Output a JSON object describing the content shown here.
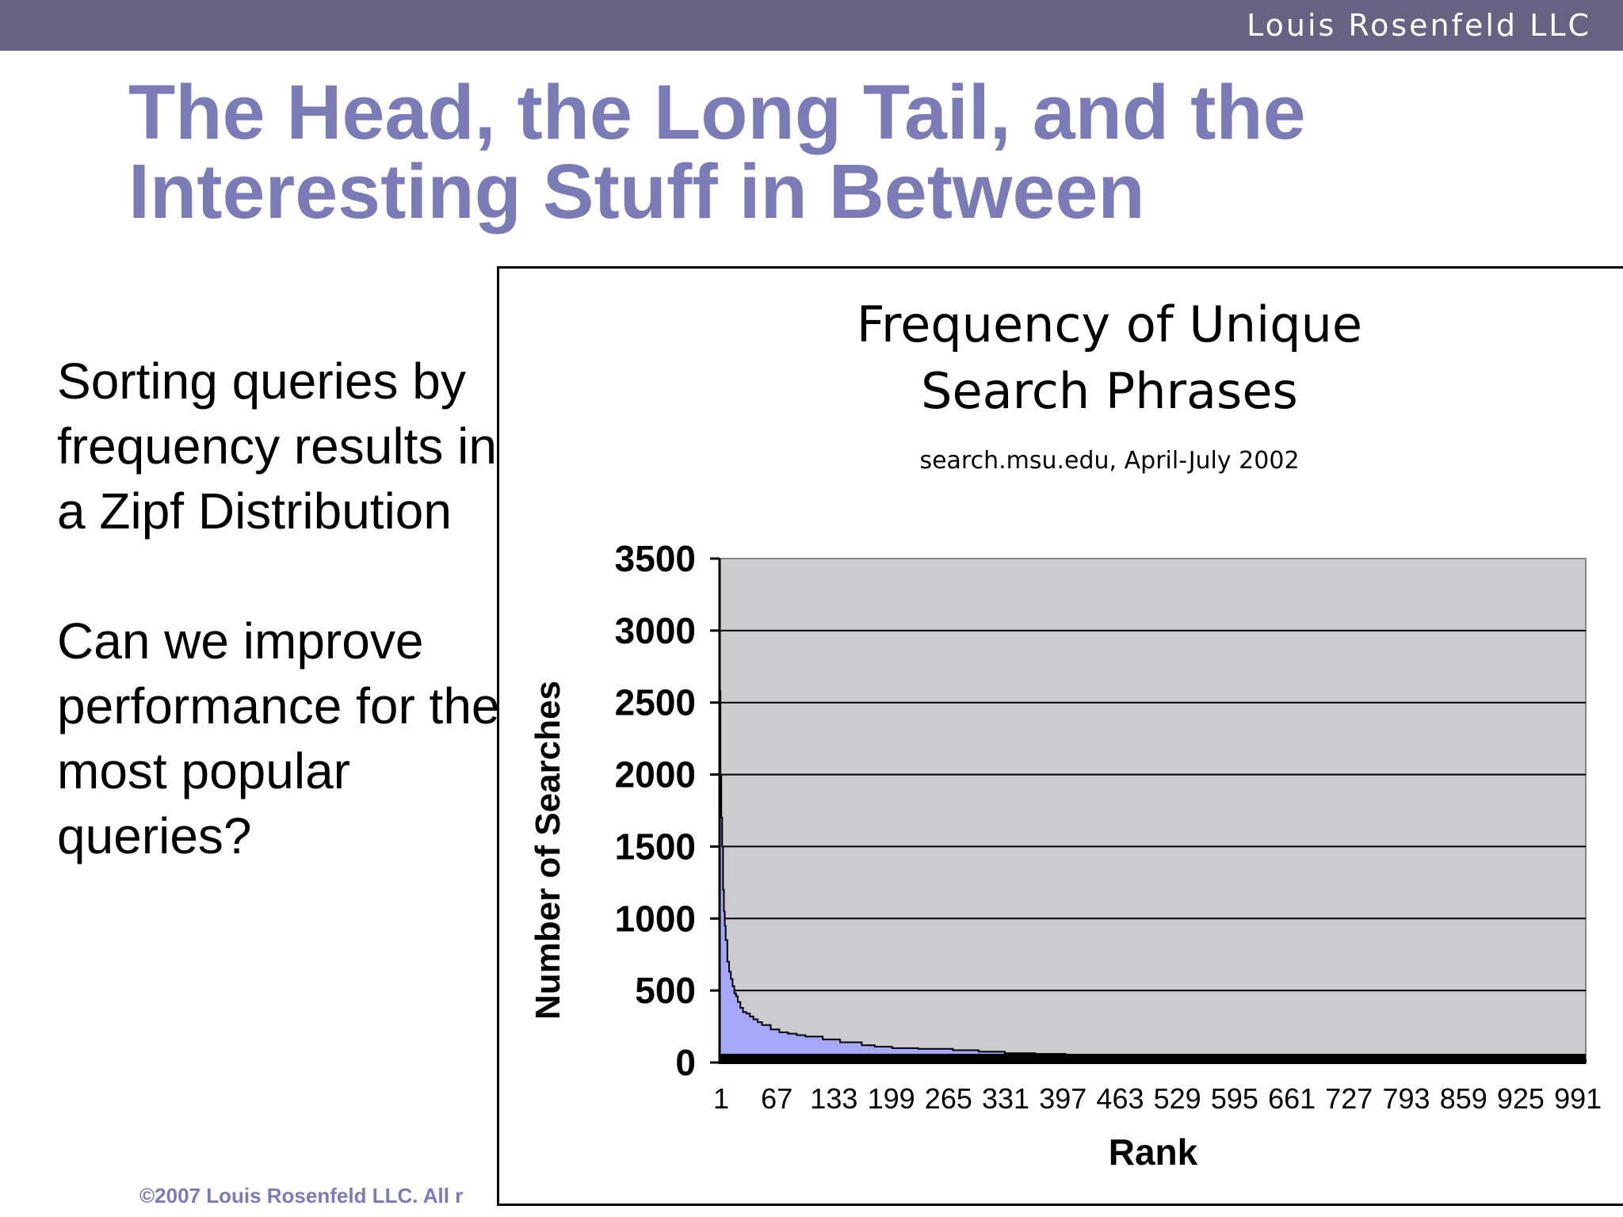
{
  "header": {
    "brand": "Louis Rosenfeld LLC"
  },
  "slide": {
    "title_line1": "The Head, the Long Tail, and the",
    "title_line2": "Interesting Stuff in Between",
    "paragraph1": "Sorting queries by frequency results in a Zipf Distribution",
    "paragraph2": "Can we improve performance for the most popular queries?",
    "footer": "©2007 Louis Rosenfeld LLC. All r"
  },
  "colors": {
    "topbar": "#676282",
    "title": "#7b7bb7",
    "plot_background": "#cccbd0",
    "area_fill": "#a7a7f7",
    "baseline": "#000000"
  },
  "chart_data": {
    "type": "area",
    "title": "Frequency of Unique Search Phrases",
    "subtitle": "search.msu.edu, April-July 2002",
    "xlabel": "Rank",
    "ylabel": "Number of Searches",
    "ylim": [
      0,
      3500
    ],
    "xlim": [
      1,
      1000
    ],
    "yticks": [
      0,
      500,
      1000,
      1500,
      2000,
      2500,
      3000,
      3500
    ],
    "xtick_labels": [
      "1",
      "67",
      "133",
      "199",
      "265",
      "331",
      "397",
      "463",
      "529",
      "595",
      "661",
      "727",
      "793",
      "859",
      "925",
      "991"
    ],
    "grid": "horizontal",
    "x": [
      1,
      2,
      3,
      4,
      5,
      6,
      7,
      8,
      10,
      12,
      14,
      16,
      18,
      20,
      22,
      25,
      28,
      32,
      36,
      40,
      45,
      50,
      60,
      70,
      80,
      90,
      100,
      120,
      140,
      165,
      180,
      200,
      230,
      270,
      300,
      330,
      365,
      400,
      450,
      500,
      550,
      600,
      620,
      700,
      800,
      850,
      859,
      925,
      1000
    ],
    "y": [
      2580,
      2000,
      1700,
      1500,
      1200,
      1050,
      950,
      850,
      700,
      630,
      580,
      530,
      480,
      460,
      420,
      380,
      350,
      340,
      320,
      300,
      280,
      260,
      230,
      210,
      200,
      190,
      180,
      160,
      140,
      120,
      110,
      100,
      95,
      85,
      75,
      65,
      60,
      50,
      50,
      45,
      45,
      40,
      35,
      35,
      30,
      30,
      20,
      20,
      20
    ],
    "tail_band_height": 60
  }
}
